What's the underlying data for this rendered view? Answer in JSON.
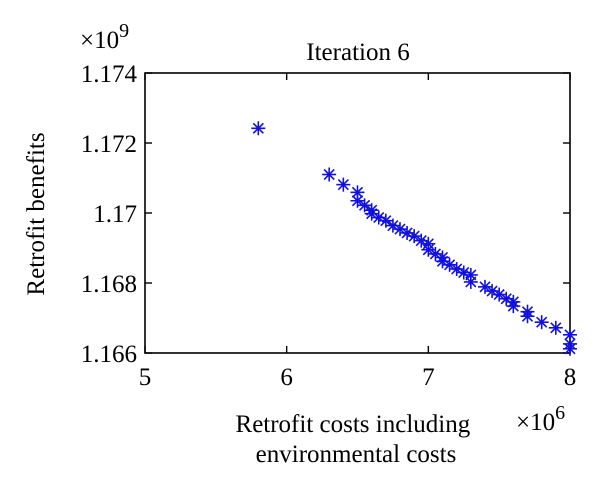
{
  "chart_data": {
    "type": "scatter",
    "title": "Iteration 6",
    "xlabel": [
      "Retrofit costs including",
      "environmental costs"
    ],
    "ylabel": "Retrofit benefits",
    "x_exponent_label": "×10",
    "x_exponent_power": "6",
    "y_exponent_label": "×10",
    "y_exponent_power": "9",
    "xlim": [
      5,
      8
    ],
    "ylim": [
      1.166,
      1.174
    ],
    "xticks": [
      5,
      6,
      7,
      8
    ],
    "xtick_labels": [
      "5",
      "6",
      "7",
      "8"
    ],
    "yticks": [
      1.166,
      1.168,
      1.17,
      1.172,
      1.174
    ],
    "ytick_labels": [
      "1.166",
      "1.168",
      "1.17",
      "1.172",
      "1.174"
    ],
    "grid": false,
    "marker": "asterisk",
    "marker_color": "#1010e0",
    "series": [
      {
        "x": [
          5.8,
          6.3,
          6.4,
          6.5,
          6.5,
          6.55,
          6.6,
          6.6,
          6.65,
          6.7,
          6.75,
          6.8,
          6.85,
          6.9,
          6.95,
          7.0,
          7.0,
          7.05,
          7.1,
          7.1,
          7.15,
          7.2,
          7.25,
          7.3,
          7.3,
          7.4,
          7.45,
          7.5,
          7.55,
          7.6,
          7.6,
          7.7,
          7.7,
          7.8,
          7.9,
          8.0,
          8.0,
          8.0
        ],
        "y": [
          1.17242,
          1.1711,
          1.17081,
          1.17059,
          1.17035,
          1.17022,
          1.17008,
          1.16998,
          1.16987,
          1.16978,
          1.16964,
          1.16954,
          1.16943,
          1.16934,
          1.16921,
          1.16912,
          1.16895,
          1.16883,
          1.16873,
          1.16862,
          1.16852,
          1.1684,
          1.1683,
          1.16823,
          1.16803,
          1.16789,
          1.16777,
          1.16767,
          1.16755,
          1.16746,
          1.16734,
          1.16718,
          1.16705,
          1.16688,
          1.16672,
          1.16652,
          1.16626,
          1.16612
        ]
      }
    ]
  }
}
